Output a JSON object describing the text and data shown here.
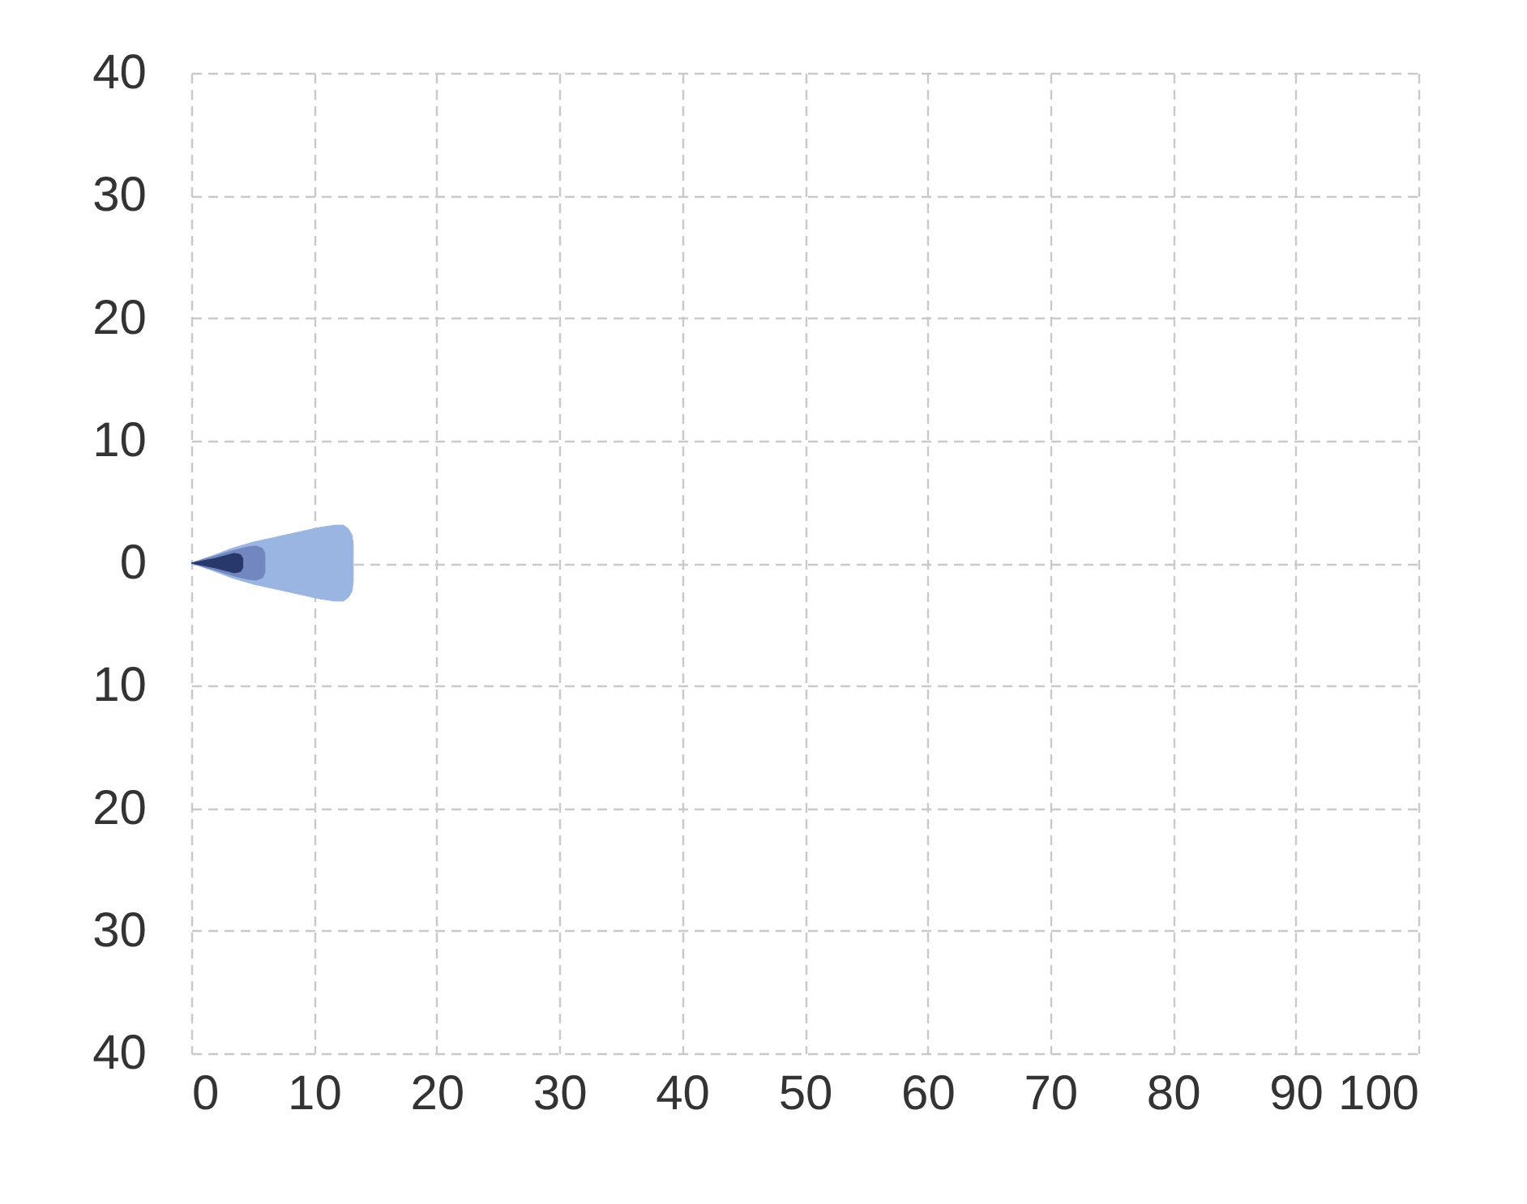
{
  "chart_data": {
    "type": "area",
    "series": [
      {
        "color": "#9ab5e2",
        "x": [
          0,
          2,
          3.3,
          5,
          7.7,
          10.4,
          11.7,
          12.4,
          12.8,
          13.1,
          13.2,
          13.2,
          13.1,
          12.8,
          12.4,
          11.7,
          10.4,
          7.7,
          5,
          3.3,
          2
        ],
        "values": [
          0,
          0.7,
          1.2,
          1.7,
          2.3,
          2.9,
          3.1,
          3.1,
          2.8,
          2.3,
          1.5,
          -1.5,
          -2.3,
          -2.8,
          -3.1,
          -3.1,
          -2.9,
          -2.3,
          -1.7,
          -1.2,
          -0.7
        ]
      },
      {
        "color": "#7287c0",
        "x": [
          0,
          2,
          3.3,
          4.5,
          5.3,
          5.8,
          6,
          6,
          5.8,
          5.3,
          4.5,
          3.3,
          2
        ],
        "values": [
          0,
          0.6,
          1,
          1.3,
          1.4,
          1.2,
          0.8,
          -0.8,
          -1.2,
          -1.4,
          -1.3,
          -1,
          -0.6
        ]
      },
      {
        "color": "#28386b",
        "x": [
          0,
          2,
          3.5,
          4,
          4.2,
          4.2,
          4,
          3.5,
          2
        ],
        "values": [
          0,
          0.4,
          0.8,
          0.7,
          0.4,
          -0.4,
          -0.7,
          -0.8,
          -0.4
        ]
      }
    ],
    "xlim": [
      0,
      100
    ],
    "xticks": [
      0,
      10,
      20,
      30,
      40,
      50,
      60,
      70,
      80,
      90,
      100
    ],
    "ylim": [
      -40,
      40
    ],
    "yticks": [
      {
        "value": -40,
        "label": "40"
      },
      {
        "value": -30,
        "label": "30"
      },
      {
        "value": -20,
        "label": "20"
      },
      {
        "value": -10,
        "label": "10"
      },
      0,
      10,
      20,
      30,
      40
    ],
    "grid": true
  }
}
